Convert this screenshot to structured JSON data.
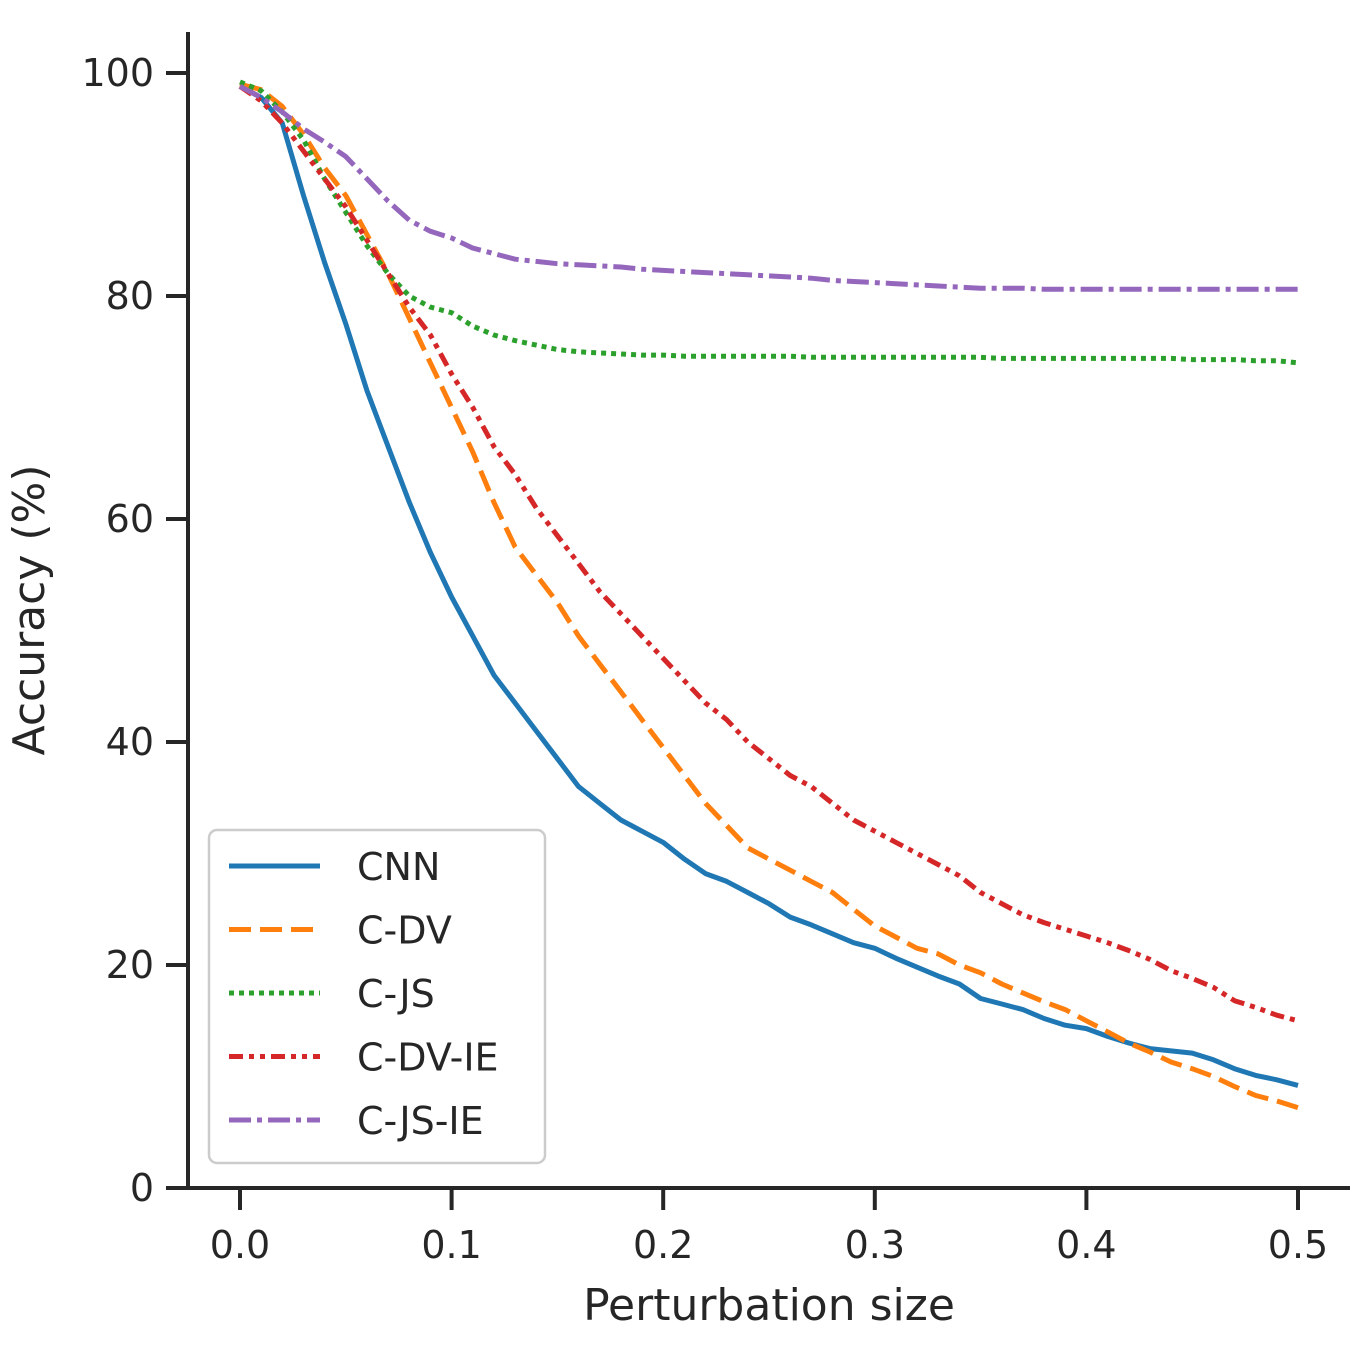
{
  "chart_data": {
    "type": "line",
    "title": "",
    "xlabel": "Perturbation size",
    "ylabel": "Accuracy (%)",
    "xlim": [
      -0.025,
      0.525
    ],
    "ylim": [
      0,
      104
    ],
    "xticks": [
      0.0,
      0.1,
      0.2,
      0.3,
      0.4,
      0.5
    ],
    "xtick_labels": [
      "0.0",
      "0.1",
      "0.2",
      "0.3",
      "0.4",
      "0.5"
    ],
    "yticks": [
      0,
      20,
      40,
      60,
      80,
      100
    ],
    "ytick_labels": [
      "0",
      "20",
      "40",
      "60",
      "80",
      "100"
    ],
    "grid": false,
    "legend_position": "lower-left",
    "x": [
      0.0,
      0.01,
      0.02,
      0.03,
      0.04,
      0.05,
      0.06,
      0.07,
      0.08,
      0.09,
      0.1,
      0.11,
      0.12,
      0.13,
      0.14,
      0.15,
      0.16,
      0.17,
      0.18,
      0.19,
      0.2,
      0.21,
      0.22,
      0.23,
      0.24,
      0.25,
      0.26,
      0.27,
      0.28,
      0.29,
      0.3,
      0.31,
      0.32,
      0.33,
      0.34,
      0.35,
      0.36,
      0.37,
      0.38,
      0.39,
      0.4,
      0.41,
      0.42,
      0.43,
      0.44,
      0.45,
      0.46,
      0.47,
      0.48,
      0.49,
      0.5
    ],
    "series": [
      {
        "name": "CNN",
        "color": "#1f77b4",
        "dash": "solid",
        "values": [
          98.8,
          97.8,
          95.5,
          89.0,
          83.0,
          77.5,
          71.5,
          66.5,
          61.5,
          57.0,
          53.0,
          49.5,
          46.0,
          43.5,
          41.0,
          38.5,
          36.0,
          34.5,
          33.0,
          32.0,
          31.0,
          29.5,
          28.2,
          27.5,
          26.5,
          25.5,
          24.3,
          23.6,
          22.8,
          22.0,
          21.5,
          20.6,
          19.8,
          19.0,
          18.3,
          17.0,
          16.5,
          16.0,
          15.2,
          14.6,
          14.3,
          13.6,
          13.0,
          12.5,
          12.3,
          12.1,
          11.5,
          10.7,
          10.1,
          9.7,
          9.2
        ]
      },
      {
        "name": "C-DV",
        "color": "#ff7f0e",
        "dash": "dashed",
        "values": [
          99.0,
          98.5,
          97.0,
          94.5,
          91.5,
          89.0,
          85.5,
          82.0,
          78.0,
          74.0,
          70.0,
          66.0,
          61.5,
          57.5,
          55.0,
          52.5,
          49.5,
          47.0,
          44.5,
          42.0,
          39.5,
          37.0,
          34.5,
          32.5,
          30.5,
          29.5,
          28.5,
          27.5,
          26.5,
          25.0,
          23.5,
          22.5,
          21.5,
          21.0,
          20.0,
          19.3,
          18.3,
          17.5,
          16.7,
          16.0,
          15.0,
          14.0,
          13.0,
          12.2,
          11.3,
          10.7,
          10.0,
          9.1,
          8.3,
          7.8,
          7.2
        ]
      },
      {
        "name": "C-JS",
        "color": "#2ca02c",
        "dash": "dotted",
        "values": [
          99.2,
          98.4,
          96.5,
          94.0,
          90.5,
          87.5,
          84.5,
          82.0,
          80.0,
          79.0,
          78.5,
          77.3,
          76.5,
          76.0,
          75.6,
          75.2,
          75.0,
          74.9,
          74.8,
          74.7,
          74.7,
          74.6,
          74.6,
          74.6,
          74.6,
          74.6,
          74.6,
          74.5,
          74.5,
          74.5,
          74.5,
          74.5,
          74.5,
          74.5,
          74.5,
          74.5,
          74.4,
          74.4,
          74.4,
          74.4,
          74.4,
          74.4,
          74.4,
          74.4,
          74.4,
          74.3,
          74.3,
          74.3,
          74.2,
          74.2,
          74.0
        ]
      },
      {
        "name": "C-DV-IE",
        "color": "#d62728",
        "dash": "dashdotdot",
        "values": [
          98.8,
          97.5,
          95.5,
          93.0,
          90.5,
          88.0,
          85.0,
          82.0,
          79.0,
          76.5,
          73.0,
          70.0,
          66.5,
          64.0,
          61.0,
          58.5,
          56.0,
          53.5,
          51.5,
          49.5,
          47.5,
          45.5,
          43.5,
          42.0,
          40.0,
          38.5,
          37.0,
          36.0,
          34.5,
          33.0,
          32.0,
          31.0,
          30.0,
          29.0,
          28.0,
          26.5,
          25.5,
          24.5,
          23.8,
          23.2,
          22.6,
          22.0,
          21.3,
          20.5,
          19.5,
          18.8,
          18.0,
          16.8,
          16.2,
          15.5,
          15.0
        ]
      },
      {
        "name": "C-JS-IE",
        "color": "#9467bd",
        "dash": "dashdot",
        "values": [
          98.8,
          97.8,
          96.5,
          95.0,
          93.8,
          92.5,
          90.5,
          88.5,
          86.8,
          85.8,
          85.2,
          84.3,
          83.8,
          83.3,
          83.1,
          82.9,
          82.8,
          82.7,
          82.6,
          82.4,
          82.3,
          82.2,
          82.1,
          82.0,
          81.9,
          81.8,
          81.7,
          81.6,
          81.4,
          81.3,
          81.2,
          81.1,
          81.0,
          80.9,
          80.8,
          80.7,
          80.7,
          80.7,
          80.6,
          80.6,
          80.6,
          80.6,
          80.6,
          80.6,
          80.6,
          80.6,
          80.6,
          80.6,
          80.6,
          80.6,
          80.6
        ]
      }
    ]
  }
}
